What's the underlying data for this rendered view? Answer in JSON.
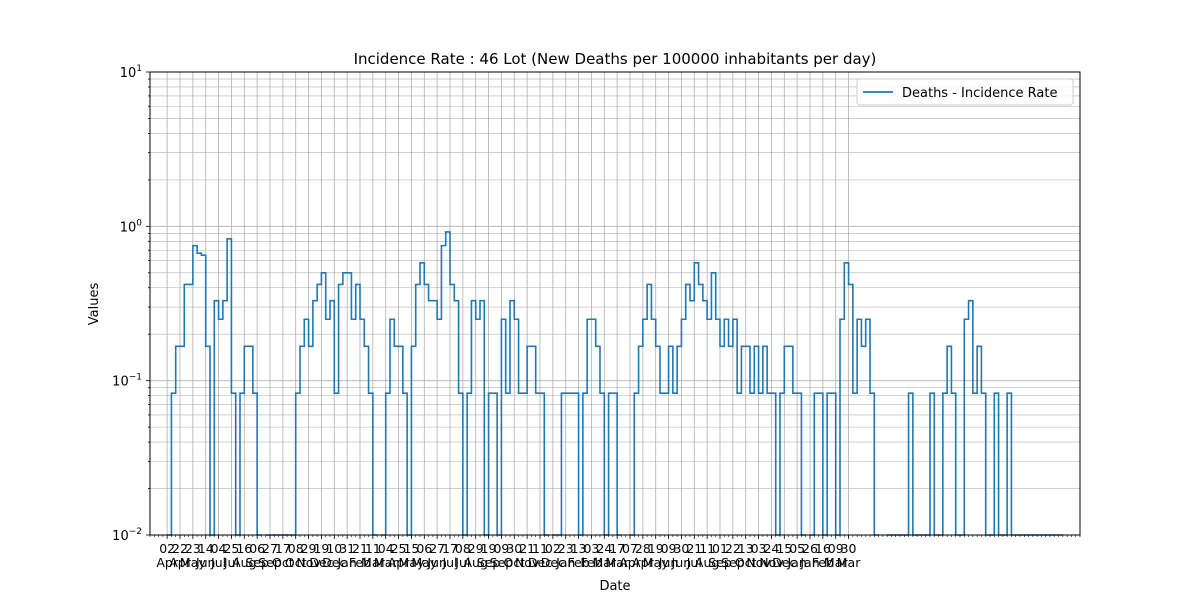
{
  "chart_data": {
    "type": "line",
    "title": "Incidence Rate : 46 Lot (New Deaths per 100000 inhabitants per day)",
    "xlabel": "Date",
    "ylabel": "Values",
    "yscale": "log",
    "ylim": [
      0.01,
      10
    ],
    "y_ticks": [
      {
        "value": 0.01,
        "base": "10",
        "exp": "−2"
      },
      {
        "value": 0.1,
        "base": "10",
        "exp": "−1"
      },
      {
        "value": 1,
        "base": "10",
        "exp": "0"
      },
      {
        "value": 10,
        "base": "10",
        "exp": "1"
      }
    ],
    "grid": true,
    "legend_position": "upper-right",
    "x_ticks": [
      {
        "day": "02",
        "month": "Apr"
      },
      {
        "day": "22",
        "month": "Apr"
      },
      {
        "day": "23",
        "month": "May"
      },
      {
        "day": "14",
        "month": "Jun"
      },
      {
        "day": "04",
        "month": "Jul"
      },
      {
        "day": "25",
        "month": "Jul"
      },
      {
        "day": "16",
        "month": "Aug"
      },
      {
        "day": "06",
        "month": "Sep"
      },
      {
        "day": "27",
        "month": "Sep"
      },
      {
        "day": "17",
        "month": "Oct"
      },
      {
        "day": "08",
        "month": "Oct"
      },
      {
        "day": "29",
        "month": "Nov"
      },
      {
        "day": "19",
        "month": "Dec"
      },
      {
        "day": "10",
        "month": "Dec"
      },
      {
        "day": "31",
        "month": "Jan"
      },
      {
        "day": "21",
        "month": "Feb"
      },
      {
        "day": "11",
        "month": "Mar"
      },
      {
        "day": "04",
        "month": "Mar"
      },
      {
        "day": "25",
        "month": "Apr"
      },
      {
        "day": "15",
        "month": "May"
      },
      {
        "day": "06",
        "month": "May"
      },
      {
        "day": "27",
        "month": "Jun"
      },
      {
        "day": "17",
        "month": "Jul"
      },
      {
        "day": "08",
        "month": "Jul"
      },
      {
        "day": "29",
        "month": "Aug"
      },
      {
        "day": "19",
        "month": "Sep"
      },
      {
        "day": "09",
        "month": "Sep"
      },
      {
        "day": "30",
        "month": "Oct"
      },
      {
        "day": "21",
        "month": "Nov"
      },
      {
        "day": "11",
        "month": "Dec"
      },
      {
        "day": "02",
        "month": "Dec"
      },
      {
        "day": "23",
        "month": "Jan"
      },
      {
        "day": "13",
        "month": "Feb"
      },
      {
        "day": "03",
        "month": "Feb"
      },
      {
        "day": "24",
        "month": "Mar"
      },
      {
        "day": "17",
        "month": "Mar"
      },
      {
        "day": "07",
        "month": "Apr"
      },
      {
        "day": "28",
        "month": "Apr"
      },
      {
        "day": "19",
        "month": "May"
      },
      {
        "day": "09",
        "month": "Jun"
      },
      {
        "day": "30",
        "month": "Jun"
      },
      {
        "day": "21",
        "month": "Jul"
      },
      {
        "day": "11",
        "month": "Aug"
      },
      {
        "day": "01",
        "month": "Sep"
      },
      {
        "day": "22",
        "month": "Sep"
      },
      {
        "day": "13",
        "month": "Oct"
      },
      {
        "day": "03",
        "month": "Nov"
      },
      {
        "day": "24",
        "month": "Nov"
      },
      {
        "day": "15",
        "month": "Dec"
      },
      {
        "day": "05",
        "month": "Jan"
      },
      {
        "day": "26",
        "month": "Jan"
      },
      {
        "day": "16",
        "month": "Feb"
      },
      {
        "day": "09",
        "month": "Mar"
      },
      {
        "day": "30",
        "month": "Mar"
      }
    ],
    "series": [
      {
        "name": "Deaths - Incidence Rate",
        "color": "#1f77b4",
        "points": [
          [
            0,
            0.01
          ],
          [
            1,
            0.083
          ],
          [
            2,
            0.167
          ],
          [
            3,
            0.167
          ],
          [
            4,
            0.42
          ],
          [
            5,
            0.42
          ],
          [
            6,
            0.75
          ],
          [
            7,
            0.67
          ],
          [
            8,
            0.65
          ],
          [
            9,
            0.167
          ],
          [
            10,
            0.01
          ],
          [
            11,
            0.33
          ],
          [
            12,
            0.25
          ],
          [
            13,
            0.33
          ],
          [
            14,
            0.83
          ],
          [
            15,
            0.083
          ],
          [
            16,
            0.01
          ],
          [
            17,
            0.083
          ],
          [
            18,
            0.167
          ],
          [
            19,
            0.167
          ],
          [
            20,
            0.083
          ],
          [
            21,
            0.01
          ],
          [
            23,
            0.01
          ],
          [
            24,
            0.01
          ],
          [
            25,
            0.01
          ],
          [
            26,
            0.01
          ],
          [
            27,
            0.01
          ],
          [
            28,
            0.01
          ],
          [
            29,
            0.01
          ],
          [
            30,
            0.083
          ],
          [
            31,
            0.167
          ],
          [
            32,
            0.25
          ],
          [
            33,
            0.167
          ],
          [
            34,
            0.33
          ],
          [
            35,
            0.42
          ],
          [
            36,
            0.5
          ],
          [
            37,
            0.25
          ],
          [
            38,
            0.33
          ],
          [
            39,
            0.083
          ],
          [
            40,
            0.42
          ],
          [
            41,
            0.5
          ],
          [
            42,
            0.5
          ],
          [
            43,
            0.25
          ],
          [
            44,
            0.42
          ],
          [
            45,
            0.25
          ],
          [
            46,
            0.167
          ],
          [
            47,
            0.083
          ],
          [
            48,
            0.01
          ],
          [
            50,
            0.01
          ],
          [
            51,
            0.083
          ],
          [
            52,
            0.25
          ],
          [
            53,
            0.167
          ],
          [
            54,
            0.167
          ],
          [
            55,
            0.083
          ],
          [
            56,
            0.01
          ],
          [
            57,
            0.167
          ],
          [
            58,
            0.42
          ],
          [
            59,
            0.58
          ],
          [
            60,
            0.42
          ],
          [
            61,
            0.33
          ],
          [
            62,
            0.33
          ],
          [
            63,
            0.25
          ],
          [
            64,
            0.75
          ],
          [
            65,
            0.92
          ],
          [
            66,
            0.42
          ],
          [
            67,
            0.33
          ],
          [
            68,
            0.083
          ],
          [
            69,
            0.01
          ],
          [
            70,
            0.083
          ],
          [
            71,
            0.33
          ],
          [
            72,
            0.25
          ],
          [
            73,
            0.33
          ],
          [
            74,
            0.01
          ],
          [
            75,
            0.083
          ],
          [
            76,
            0.083
          ],
          [
            77,
            0.01
          ],
          [
            78,
            0.25
          ],
          [
            79,
            0.083
          ],
          [
            80,
            0.33
          ],
          [
            81,
            0.25
          ],
          [
            82,
            0.083
          ],
          [
            83,
            0.083
          ],
          [
            84,
            0.167
          ],
          [
            85,
            0.167
          ],
          [
            86,
            0.083
          ],
          [
            87,
            0.083
          ],
          [
            88,
            0.01
          ],
          [
            90,
            0.01
          ],
          [
            91,
            0.01
          ],
          [
            92,
            0.083
          ],
          [
            93,
            0.083
          ],
          [
            94,
            0.083
          ],
          [
            95,
            0.083
          ],
          [
            96,
            0.01
          ],
          [
            97,
            0.083
          ],
          [
            98,
            0.25
          ],
          [
            99,
            0.25
          ],
          [
            100,
            0.167
          ],
          [
            101,
            0.083
          ],
          [
            102,
            0.01
          ],
          [
            103,
            0.083
          ],
          [
            104,
            0.083
          ],
          [
            105,
            0.01
          ],
          [
            108,
            0.01
          ],
          [
            109,
            0.083
          ],
          [
            110,
            0.167
          ],
          [
            111,
            0.25
          ],
          [
            112,
            0.42
          ],
          [
            113,
            0.25
          ],
          [
            114,
            0.167
          ],
          [
            115,
            0.083
          ],
          [
            116,
            0.083
          ],
          [
            117,
            0.167
          ],
          [
            118,
            0.083
          ],
          [
            119,
            0.167
          ],
          [
            120,
            0.25
          ],
          [
            121,
            0.42
          ],
          [
            122,
            0.33
          ],
          [
            123,
            0.58
          ],
          [
            124,
            0.42
          ],
          [
            125,
            0.33
          ],
          [
            126,
            0.25
          ],
          [
            127,
            0.5
          ],
          [
            128,
            0.25
          ],
          [
            129,
            0.167
          ],
          [
            130,
            0.25
          ],
          [
            131,
            0.167
          ],
          [
            132,
            0.25
          ],
          [
            133,
            0.083
          ],
          [
            134,
            0.167
          ],
          [
            135,
            0.167
          ],
          [
            136,
            0.083
          ],
          [
            137,
            0.167
          ],
          [
            138,
            0.083
          ],
          [
            139,
            0.167
          ],
          [
            140,
            0.083
          ],
          [
            141,
            0.083
          ],
          [
            142,
            0.01
          ],
          [
            143,
            0.083
          ],
          [
            144,
            0.167
          ],
          [
            145,
            0.167
          ],
          [
            146,
            0.083
          ],
          [
            147,
            0.083
          ],
          [
            148,
            0.01
          ],
          [
            150,
            0.01
          ],
          [
            151,
            0.083
          ],
          [
            152,
            0.083
          ],
          [
            153,
            0.01
          ],
          [
            154,
            0.083
          ],
          [
            155,
            0.083
          ],
          [
            156,
            0.01
          ],
          [
            157,
            0.25
          ],
          [
            158,
            0.58
          ],
          [
            159,
            0.42
          ],
          [
            160,
            0.083
          ],
          [
            161,
            0.25
          ],
          [
            162,
            0.167
          ],
          [
            163,
            0.25
          ],
          [
            164,
            0.083
          ],
          [
            165,
            0.01
          ],
          [
            168,
            0.01
          ],
          [
            169,
            0.01
          ],
          [
            170,
            0.01
          ],
          [
            171,
            0.01
          ],
          [
            172,
            0.01
          ],
          [
            173,
            0.083
          ],
          [
            174,
            0.01
          ],
          [
            175,
            0.01
          ],
          [
            176,
            0.01
          ],
          [
            177,
            0.01
          ],
          [
            178,
            0.083
          ],
          [
            179,
            0.01
          ],
          [
            180,
            0.01
          ],
          [
            181,
            0.083
          ],
          [
            182,
            0.167
          ],
          [
            183,
            0.083
          ],
          [
            184,
            0.01
          ],
          [
            185,
            0.01
          ],
          [
            186,
            0.25
          ],
          [
            187,
            0.33
          ],
          [
            188,
            0.083
          ],
          [
            189,
            0.167
          ],
          [
            190,
            0.083
          ],
          [
            191,
            0.01
          ],
          [
            192,
            0.01
          ],
          [
            193,
            0.083
          ],
          [
            194,
            0.01
          ],
          [
            195,
            0.01
          ],
          [
            196,
            0.083
          ],
          [
            197,
            0.01
          ],
          [
            198,
            0.01
          ],
          [
            199,
            0.01
          ],
          [
            200,
            0.01
          ],
          [
            201,
            0.01
          ],
          [
            202,
            0.01
          ],
          [
            203,
            0.01
          ],
          [
            204,
            0.01
          ],
          [
            205,
            0.01
          ],
          [
            206,
            0.01
          ],
          [
            207,
            0.01
          ],
          [
            208,
            0.01
          ]
        ]
      }
    ]
  }
}
